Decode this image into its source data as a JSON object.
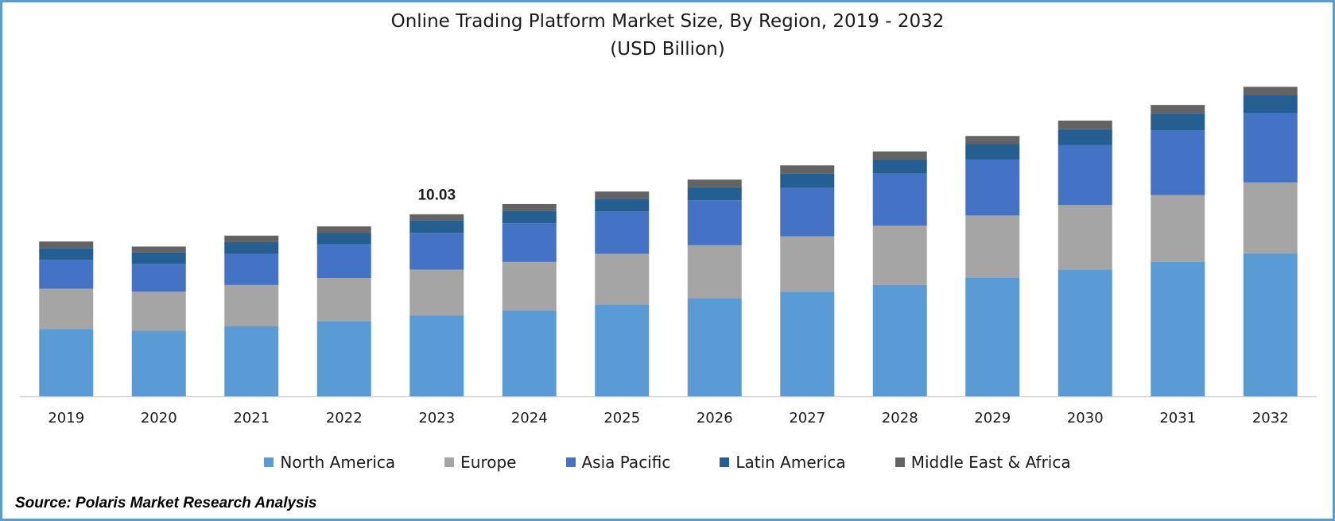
{
  "chart_data": {
    "type": "bar",
    "stacked": true,
    "title": "Online Trading Platform Market  Size, By Region, 2019 - 2032",
    "subtitle": "(USD Billion)",
    "categories": [
      "2019",
      "2020",
      "2021",
      "2022",
      "2023",
      "2024",
      "2025",
      "2026",
      "2027",
      "2028",
      "2029",
      "2030",
      "2031",
      "2032"
    ],
    "series": [
      {
        "name": "North America",
        "color": "#5b9bd5",
        "values": [
          3.7,
          3.61,
          3.85,
          4.14,
          4.44,
          4.73,
          5.05,
          5.4,
          5.76,
          6.13,
          6.55,
          6.99,
          7.41,
          7.87
        ]
      },
      {
        "name": "Europe",
        "color": "#a5a5a5",
        "values": [
          2.23,
          2.15,
          2.28,
          2.38,
          2.54,
          2.67,
          2.8,
          2.92,
          3.05,
          3.27,
          3.41,
          3.55,
          3.68,
          3.91
        ]
      },
      {
        "name": "Asia Pacific",
        "color": "#4472c4",
        "values": [
          1.58,
          1.53,
          1.72,
          1.86,
          2.02,
          2.13,
          2.33,
          2.48,
          2.67,
          2.86,
          3.08,
          3.29,
          3.56,
          3.82
        ]
      },
      {
        "name": "Latin America",
        "color": "#255e91",
        "values": [
          0.66,
          0.64,
          0.64,
          0.61,
          0.7,
          0.68,
          0.7,
          0.72,
          0.8,
          0.78,
          0.85,
          0.88,
          0.93,
          0.98
        ]
      },
      {
        "name": "Middle East & Africa",
        "color": "#636363",
        "values": [
          0.36,
          0.32,
          0.36,
          0.37,
          0.33,
          0.38,
          0.4,
          0.42,
          0.44,
          0.45,
          0.45,
          0.48,
          0.47,
          0.47
        ]
      }
    ],
    "annotations": [
      {
        "category": "2023",
        "text": "10.03"
      }
    ],
    "ylim": [
      0,
      17.5
    ],
    "xlabel": "",
    "ylabel": "",
    "grid": false,
    "legend": "bottom"
  },
  "source": "Source: Polaris Market Research Analysis"
}
